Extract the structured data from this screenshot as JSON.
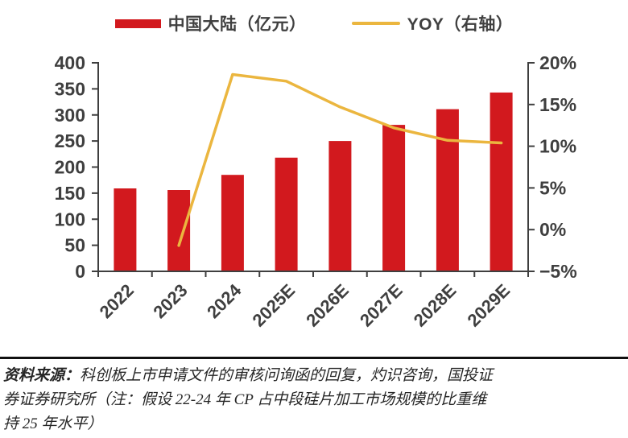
{
  "colors": {
    "bar_red": "#D2191E",
    "line_yellow": "#EBB63F",
    "axis": "#3F3F3F",
    "divider": "#111111",
    "footer_text": "#262626"
  },
  "chart_data": {
    "type": "bar",
    "subtype": "bar+line combo, dual axis",
    "title": "",
    "categories": [
      "2022",
      "2023",
      "2024",
      "2025E",
      "2026E",
      "2027E",
      "2028E",
      "2029E"
    ],
    "series": [
      {
        "name": "中国大陆（亿元）",
        "type": "bar",
        "axis": "left",
        "color": "#D2191E",
        "values": [
          159,
          156,
          185,
          218,
          250,
          281,
          311,
          343
        ]
      },
      {
        "name": "YOY（右轴）",
        "type": "line",
        "axis": "right",
        "color": "#EBB63F",
        "unit": "%",
        "values": [
          null,
          -1.9,
          18.6,
          17.8,
          14.7,
          12.2,
          10.7,
          10.4
        ]
      }
    ],
    "left_axis": {
      "min": 0,
      "max": 400,
      "step": 50,
      "tick_labels": [
        "0",
        "50",
        "100",
        "150",
        "200",
        "250",
        "300",
        "350",
        "400"
      ]
    },
    "right_axis": {
      "min": -5,
      "max": 20,
      "step": 5,
      "tick_labels": [
        "−5%",
        "0%",
        "5%",
        "10%",
        "15%",
        "20%"
      ]
    },
    "grid": false,
    "legend_position": "top"
  },
  "footer": {
    "source_label": "资料来源：",
    "line1_rest": "科创板上市申请文件的审核问询函的回复，灼识咨询，国投证",
    "line2": "券证券研究所（注：假设 22-24 年 CP 占中段硅片加工市场规模的比重维",
    "line3": "持 25 年水平）"
  }
}
